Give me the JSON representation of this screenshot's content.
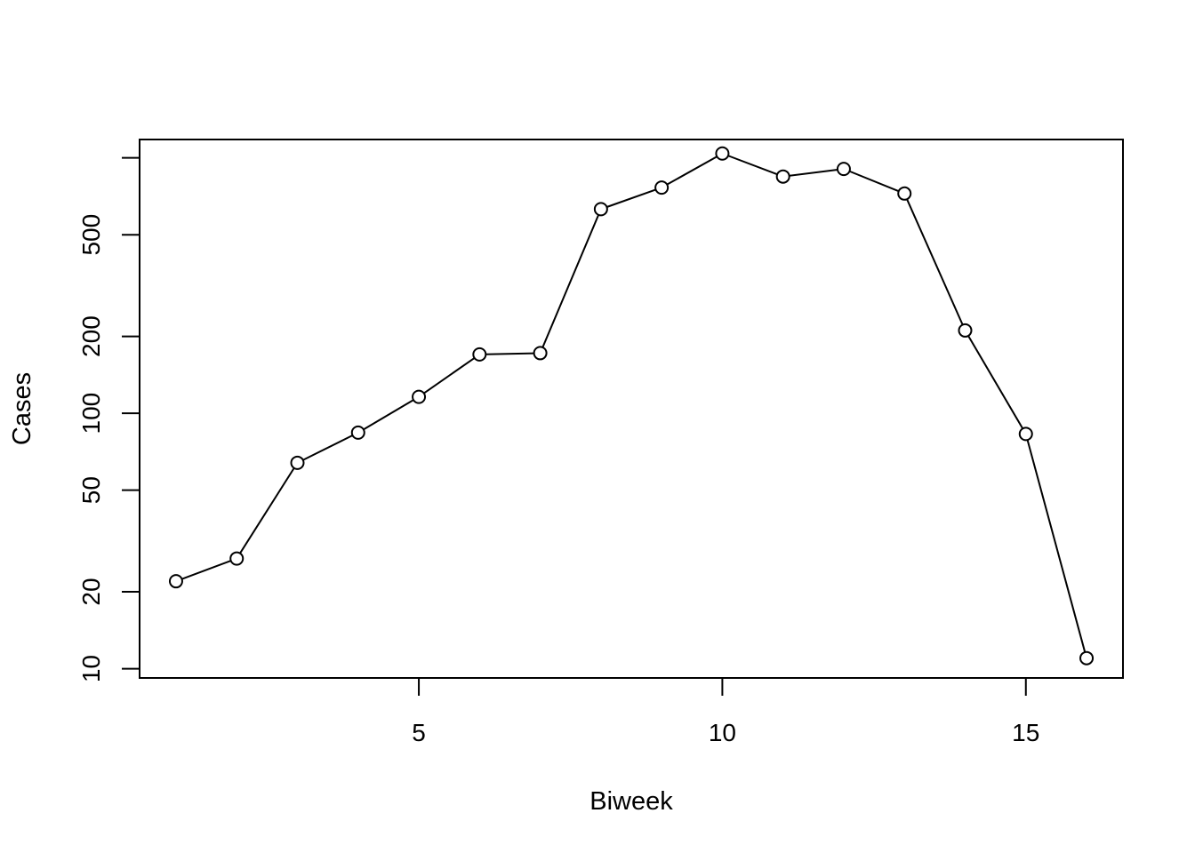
{
  "chart_data": {
    "type": "line",
    "title": "",
    "xlabel": "Biweek",
    "ylabel": "Cases",
    "y_scale": "log",
    "xlim": [
      0.4,
      16.6
    ],
    "ylim": [
      9.2,
      1180
    ],
    "x_ticks": [
      5,
      10,
      15
    ],
    "x_tick_labels": [
      "5",
      "10",
      "15"
    ],
    "y_ticks": [
      10,
      20,
      50,
      100,
      200,
      500
    ],
    "y_tick_labels": [
      "10",
      "20",
      "50",
      "100",
      "200",
      "500"
    ],
    "grid": false,
    "legend": "none",
    "markers": "open-circle",
    "line_color": "#000000",
    "series": [
      {
        "x": [
          1,
          2,
          3,
          4,
          5,
          6,
          7,
          8,
          9,
          10,
          11,
          12,
          13,
          14,
          15,
          16
        ],
        "values": [
          22,
          27,
          64,
          84,
          116,
          170,
          172,
          630,
          765,
          1040,
          845,
          905,
          725,
          211,
          83,
          11
        ]
      }
    ]
  }
}
